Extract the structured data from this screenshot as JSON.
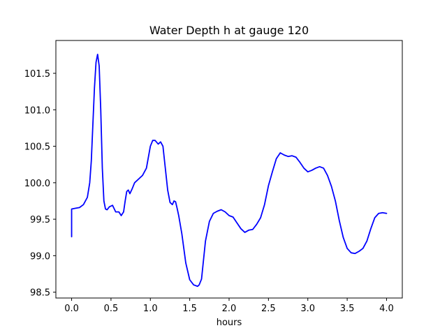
{
  "chart_data": {
    "type": "line",
    "title": "Water Depth h at gauge 120",
    "xlabel": "hours",
    "ylabel": "",
    "xlim": [
      -0.2,
      4.2
    ],
    "ylim": [
      98.42,
      101.95
    ],
    "xticks": [
      0.0,
      0.5,
      1.0,
      1.5,
      2.0,
      2.5,
      3.0,
      3.5,
      4.0
    ],
    "xtick_labels": [
      "0.0",
      "0.5",
      "1.0",
      "1.5",
      "2.0",
      "2.5",
      "3.0",
      "3.5",
      "4.0"
    ],
    "yticks": [
      98.5,
      99.0,
      99.5,
      100.0,
      100.5,
      101.0,
      101.5
    ],
    "ytick_labels": [
      "98.5",
      "99.0",
      "99.5",
      "100.0",
      "100.5",
      "101.0",
      "101.5"
    ],
    "grid": false,
    "series": [
      {
        "color": "#0000ff",
        "x": [
          0.0,
          0.0,
          0.05,
          0.1,
          0.15,
          0.2,
          0.23,
          0.25,
          0.27,
          0.29,
          0.31,
          0.33,
          0.35,
          0.37,
          0.39,
          0.41,
          0.43,
          0.45,
          0.48,
          0.52,
          0.56,
          0.6,
          0.63,
          0.66,
          0.68,
          0.7,
          0.72,
          0.74,
          0.77,
          0.8,
          0.85,
          0.9,
          0.95,
          1.0,
          1.03,
          1.06,
          1.1,
          1.13,
          1.16,
          1.19,
          1.22,
          1.25,
          1.28,
          1.3,
          1.32,
          1.34,
          1.36,
          1.4,
          1.45,
          1.5,
          1.55,
          1.6,
          1.62,
          1.65,
          1.7,
          1.75,
          1.8,
          1.85,
          1.9,
          1.95,
          2.0,
          2.05,
          2.1,
          2.15,
          2.2,
          2.25,
          2.3,
          2.35,
          2.4,
          2.45,
          2.5,
          2.55,
          2.6,
          2.65,
          2.7,
          2.75,
          2.8,
          2.85,
          2.9,
          2.95,
          3.0,
          3.05,
          3.1,
          3.15,
          3.2,
          3.25,
          3.3,
          3.35,
          3.4,
          3.45,
          3.5,
          3.55,
          3.6,
          3.65,
          3.7,
          3.75,
          3.8,
          3.85,
          3.9,
          3.95,
          4.0
        ],
        "y": [
          99.26,
          99.64,
          99.65,
          99.66,
          99.7,
          99.8,
          100.0,
          100.3,
          100.8,
          101.3,
          101.65,
          101.76,
          101.6,
          101.0,
          100.2,
          99.75,
          99.64,
          99.63,
          99.67,
          99.69,
          99.6,
          99.6,
          99.55,
          99.6,
          99.75,
          99.88,
          99.9,
          99.85,
          99.92,
          100.0,
          100.05,
          100.1,
          100.2,
          100.5,
          100.58,
          100.58,
          100.53,
          100.56,
          100.5,
          100.2,
          99.9,
          99.73,
          99.7,
          99.75,
          99.74,
          99.65,
          99.55,
          99.3,
          98.9,
          98.67,
          98.6,
          98.58,
          98.6,
          98.68,
          99.2,
          99.47,
          99.58,
          99.61,
          99.63,
          99.6,
          99.55,
          99.53,
          99.45,
          99.37,
          99.32,
          99.35,
          99.36,
          99.43,
          99.52,
          99.7,
          99.96,
          100.15,
          100.33,
          100.41,
          100.38,
          100.36,
          100.37,
          100.35,
          100.28,
          100.2,
          100.15,
          100.17,
          100.2,
          100.22,
          100.2,
          100.1,
          99.95,
          99.75,
          99.48,
          99.25,
          99.1,
          99.04,
          99.03,
          99.06,
          99.1,
          99.2,
          99.37,
          99.52,
          99.58,
          99.59,
          99.58
        ]
      }
    ]
  }
}
